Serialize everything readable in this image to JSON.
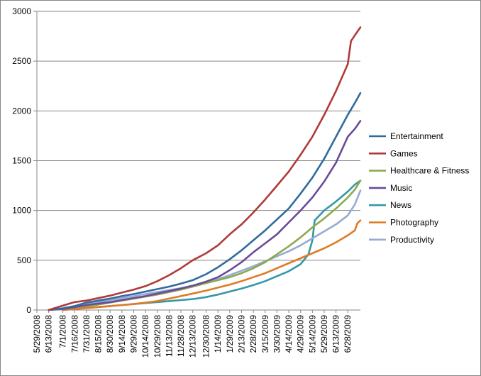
{
  "chart_data": {
    "type": "line",
    "title": "",
    "xlabel": "",
    "ylabel": "",
    "ylim": [
      0,
      3000
    ],
    "yticks": [
      0,
      500,
      1000,
      1500,
      2000,
      2500,
      3000
    ],
    "xlim": [
      "2008-05-29",
      "2009-07-14"
    ],
    "x_tick_labels": [
      "5/29/2008",
      "6/13/2008",
      "7/1/2008",
      "7/16/2008",
      "7/31/2008",
      "8/15/2008",
      "8/30/2008",
      "9/14/2008",
      "9/29/2008",
      "10/14/2008",
      "10/29/2008",
      "11/13/2008",
      "11/28/2008",
      "12/13/2008",
      "12/30/2008",
      "1/14/2009",
      "1/29/2009",
      "2/13/2009",
      "2/28/2009",
      "3/15/2009",
      "3/30/2009",
      "4/14/2009",
      "4/29/2009",
      "5/14/2009",
      "5/29/2009",
      "6/13/2009",
      "6/28/2009"
    ],
    "x_tick_dates": [
      "2008-05-29",
      "2008-06-13",
      "2008-07-01",
      "2008-07-16",
      "2008-07-31",
      "2008-08-15",
      "2008-08-30",
      "2008-09-14",
      "2008-09-29",
      "2008-10-14",
      "2008-10-29",
      "2008-11-13",
      "2008-11-28",
      "2008-12-13",
      "2008-12-30",
      "2009-01-14",
      "2009-01-29",
      "2009-02-13",
      "2009-02-28",
      "2009-03-15",
      "2009-03-30",
      "2009-04-14",
      "2009-04-29",
      "2009-05-14",
      "2009-05-29",
      "2009-06-13",
      "2009-06-28"
    ],
    "grid": "horizontal",
    "legend_position": "right",
    "series": [
      {
        "name": "Entertainment",
        "color": "#2F6B9D",
        "points": [
          [
            "2008-06-13",
            0
          ],
          [
            "2008-07-01",
            15
          ],
          [
            "2008-07-16",
            40
          ],
          [
            "2008-07-31",
            75
          ],
          [
            "2008-08-15",
            95
          ],
          [
            "2008-08-30",
            115
          ],
          [
            "2008-09-14",
            140
          ],
          [
            "2008-09-29",
            160
          ],
          [
            "2008-10-14",
            185
          ],
          [
            "2008-10-29",
            210
          ],
          [
            "2008-11-13",
            235
          ],
          [
            "2008-11-28",
            265
          ],
          [
            "2008-12-13",
            300
          ],
          [
            "2008-12-30",
            360
          ],
          [
            "2009-01-14",
            430
          ],
          [
            "2009-01-29",
            510
          ],
          [
            "2009-02-13",
            600
          ],
          [
            "2009-02-28",
            700
          ],
          [
            "2009-03-15",
            800
          ],
          [
            "2009-03-30",
            910
          ],
          [
            "2009-04-14",
            1020
          ],
          [
            "2009-04-29",
            1170
          ],
          [
            "2009-05-14",
            1330
          ],
          [
            "2009-05-29",
            1520
          ],
          [
            "2009-06-13",
            1740
          ],
          [
            "2009-06-28",
            1960
          ],
          [
            "2009-07-07",
            2080
          ],
          [
            "2009-07-14",
            2180
          ]
        ]
      },
      {
        "name": "Games",
        "color": "#B03A38",
        "points": [
          [
            "2008-06-13",
            0
          ],
          [
            "2008-07-01",
            45
          ],
          [
            "2008-07-16",
            80
          ],
          [
            "2008-07-31",
            95
          ],
          [
            "2008-08-15",
            120
          ],
          [
            "2008-08-30",
            145
          ],
          [
            "2008-09-14",
            175
          ],
          [
            "2008-09-29",
            205
          ],
          [
            "2008-10-14",
            240
          ],
          [
            "2008-10-29",
            290
          ],
          [
            "2008-11-13",
            350
          ],
          [
            "2008-11-28",
            420
          ],
          [
            "2008-12-13",
            500
          ],
          [
            "2008-12-30",
            570
          ],
          [
            "2009-01-14",
            650
          ],
          [
            "2009-01-29",
            760
          ],
          [
            "2009-02-13",
            860
          ],
          [
            "2009-02-28",
            980
          ],
          [
            "2009-03-15",
            1110
          ],
          [
            "2009-03-30",
            1250
          ],
          [
            "2009-04-14",
            1390
          ],
          [
            "2009-04-29",
            1560
          ],
          [
            "2009-05-14",
            1740
          ],
          [
            "2009-05-29",
            1960
          ],
          [
            "2009-06-13",
            2200
          ],
          [
            "2009-06-28",
            2470
          ],
          [
            "2009-07-02",
            2700
          ],
          [
            "2009-07-07",
            2760
          ],
          [
            "2009-07-14",
            2840
          ]
        ]
      },
      {
        "name": "Healthcare & Fitness",
        "color": "#8CAA4C",
        "points": [
          [
            "2008-07-01",
            0
          ],
          [
            "2008-07-16",
            15
          ],
          [
            "2008-07-31",
            35
          ],
          [
            "2008-08-15",
            55
          ],
          [
            "2008-08-30",
            75
          ],
          [
            "2008-09-14",
            95
          ],
          [
            "2008-09-29",
            115
          ],
          [
            "2008-10-14",
            135
          ],
          [
            "2008-10-29",
            155
          ],
          [
            "2008-11-13",
            180
          ],
          [
            "2008-11-28",
            205
          ],
          [
            "2008-12-13",
            235
          ],
          [
            "2008-12-30",
            270
          ],
          [
            "2009-01-14",
            300
          ],
          [
            "2009-01-29",
            330
          ],
          [
            "2009-02-13",
            370
          ],
          [
            "2009-02-28",
            420
          ],
          [
            "2009-03-15",
            480
          ],
          [
            "2009-03-30",
            560
          ],
          [
            "2009-04-14",
            640
          ],
          [
            "2009-04-29",
            730
          ],
          [
            "2009-05-14",
            830
          ],
          [
            "2009-05-29",
            920
          ],
          [
            "2009-06-13",
            1020
          ],
          [
            "2009-06-28",
            1130
          ],
          [
            "2009-07-07",
            1210
          ],
          [
            "2009-07-14",
            1300
          ]
        ]
      },
      {
        "name": "Music",
        "color": "#6B4A9B",
        "points": [
          [
            "2008-06-13",
            0
          ],
          [
            "2008-07-01",
            10
          ],
          [
            "2008-07-16",
            30
          ],
          [
            "2008-07-31",
            50
          ],
          [
            "2008-08-15",
            65
          ],
          [
            "2008-08-30",
            80
          ],
          [
            "2008-09-14",
            100
          ],
          [
            "2008-09-29",
            120
          ],
          [
            "2008-10-14",
            140
          ],
          [
            "2008-10-29",
            165
          ],
          [
            "2008-11-13",
            190
          ],
          [
            "2008-11-28",
            215
          ],
          [
            "2008-12-13",
            245
          ],
          [
            "2008-12-30",
            285
          ],
          [
            "2009-01-14",
            330
          ],
          [
            "2009-01-29",
            400
          ],
          [
            "2009-02-13",
            480
          ],
          [
            "2009-02-28",
            580
          ],
          [
            "2009-03-15",
            670
          ],
          [
            "2009-03-30",
            760
          ],
          [
            "2009-04-14",
            880
          ],
          [
            "2009-04-29",
            1000
          ],
          [
            "2009-05-14",
            1130
          ],
          [
            "2009-05-29",
            1290
          ],
          [
            "2009-06-13",
            1480
          ],
          [
            "2009-06-28",
            1740
          ],
          [
            "2009-07-07",
            1820
          ],
          [
            "2009-07-14",
            1900
          ]
        ]
      },
      {
        "name": "News",
        "color": "#3398A7",
        "points": [
          [
            "2008-07-01",
            0
          ],
          [
            "2008-07-16",
            10
          ],
          [
            "2008-07-31",
            20
          ],
          [
            "2008-08-15",
            30
          ],
          [
            "2008-08-30",
            40
          ],
          [
            "2008-09-14",
            50
          ],
          [
            "2008-09-29",
            60
          ],
          [
            "2008-10-14",
            70
          ],
          [
            "2008-10-29",
            80
          ],
          [
            "2008-11-13",
            90
          ],
          [
            "2008-11-28",
            100
          ],
          [
            "2008-12-13",
            110
          ],
          [
            "2008-12-30",
            130
          ],
          [
            "2009-01-14",
            155
          ],
          [
            "2009-01-29",
            185
          ],
          [
            "2009-02-13",
            215
          ],
          [
            "2009-02-28",
            250
          ],
          [
            "2009-03-15",
            290
          ],
          [
            "2009-03-30",
            340
          ],
          [
            "2009-04-14",
            390
          ],
          [
            "2009-04-29",
            460
          ],
          [
            "2009-05-09",
            560
          ],
          [
            "2009-05-14",
            700
          ],
          [
            "2009-05-17",
            900
          ],
          [
            "2009-05-29",
            1000
          ],
          [
            "2009-06-13",
            1090
          ],
          [
            "2009-06-28",
            1190
          ],
          [
            "2009-07-07",
            1260
          ],
          [
            "2009-07-14",
            1300
          ]
        ]
      },
      {
        "name": "Photography",
        "color": "#E07A24",
        "points": [
          [
            "2008-07-01",
            0
          ],
          [
            "2008-07-16",
            10
          ],
          [
            "2008-07-31",
            20
          ],
          [
            "2008-08-15",
            30
          ],
          [
            "2008-08-30",
            40
          ],
          [
            "2008-09-14",
            50
          ],
          [
            "2008-09-29",
            60
          ],
          [
            "2008-10-14",
            75
          ],
          [
            "2008-10-29",
            90
          ],
          [
            "2008-11-13",
            115
          ],
          [
            "2008-11-28",
            140
          ],
          [
            "2008-12-13",
            165
          ],
          [
            "2008-12-30",
            195
          ],
          [
            "2009-01-14",
            225
          ],
          [
            "2009-01-29",
            255
          ],
          [
            "2009-02-13",
            290
          ],
          [
            "2009-02-28",
            330
          ],
          [
            "2009-03-15",
            370
          ],
          [
            "2009-03-30",
            420
          ],
          [
            "2009-04-14",
            470
          ],
          [
            "2009-04-29",
            520
          ],
          [
            "2009-05-14",
            570
          ],
          [
            "2009-05-29",
            620
          ],
          [
            "2009-06-13",
            680
          ],
          [
            "2009-06-28",
            750
          ],
          [
            "2009-07-07",
            800
          ],
          [
            "2009-07-10",
            870
          ],
          [
            "2009-07-14",
            900
          ]
        ]
      },
      {
        "name": "Productivity",
        "color": "#95ABD2",
        "points": [
          [
            "2008-06-13",
            0
          ],
          [
            "2008-07-01",
            20
          ],
          [
            "2008-07-16",
            40
          ],
          [
            "2008-07-31",
            60
          ],
          [
            "2008-08-15",
            80
          ],
          [
            "2008-08-30",
            100
          ],
          [
            "2008-09-14",
            120
          ],
          [
            "2008-09-29",
            140
          ],
          [
            "2008-10-14",
            160
          ],
          [
            "2008-10-29",
            180
          ],
          [
            "2008-11-13",
            200
          ],
          [
            "2008-11-28",
            220
          ],
          [
            "2008-12-13",
            245
          ],
          [
            "2008-12-30",
            275
          ],
          [
            "2009-01-14",
            310
          ],
          [
            "2009-01-29",
            350
          ],
          [
            "2009-02-13",
            395
          ],
          [
            "2009-02-28",
            440
          ],
          [
            "2009-03-15",
            490
          ],
          [
            "2009-03-30",
            540
          ],
          [
            "2009-04-14",
            590
          ],
          [
            "2009-04-29",
            650
          ],
          [
            "2009-05-14",
            720
          ],
          [
            "2009-05-29",
            790
          ],
          [
            "2009-06-13",
            860
          ],
          [
            "2009-06-28",
            950
          ],
          [
            "2009-07-07",
            1060
          ],
          [
            "2009-07-14",
            1200
          ]
        ]
      }
    ]
  }
}
